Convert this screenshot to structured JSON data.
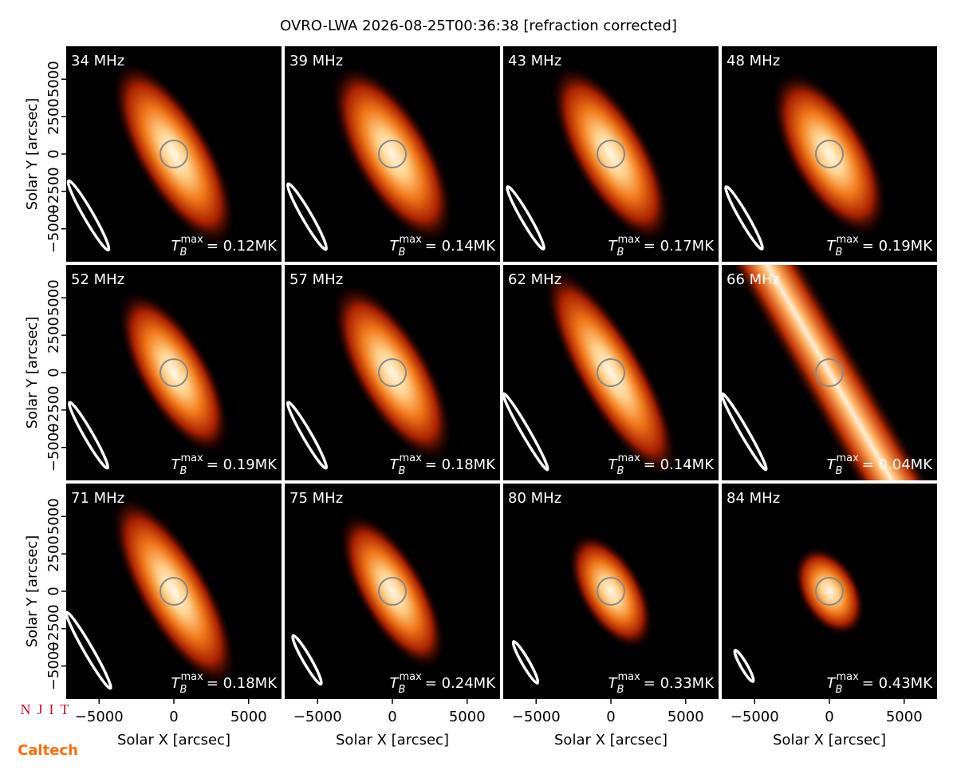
{
  "chart_data": {
    "type": "image-grid",
    "title": "OVRO-LWA 2026-08-25T00:36:38 [refraction corrected]",
    "xlabel": "Solar X [arcsec]",
    "ylabel": "Solar Y [arcsec]",
    "xlim": [
      -7200,
      7200
    ],
    "ylim": [
      -7200,
      7200
    ],
    "xticks": [
      {
        "value": -5000,
        "label": "−5000"
      },
      0,
      5000
    ],
    "yticks": [
      {
        "value": -5000,
        "label": "−5000"
      },
      {
        "value": -2500,
        "label": "−2500"
      },
      0,
      2500,
      5000
    ],
    "tb_symbol": {
      "base": "T",
      "sub": "B",
      "sup": "max"
    },
    "panels": [
      {
        "label": "34 MHz",
        "tbmax": "= 0.12MK"
      },
      {
        "label": "39 MHz",
        "tbmax": "= 0.14MK"
      },
      {
        "label": "43 MHz",
        "tbmax": "= 0.17MK"
      },
      {
        "label": "48 MHz",
        "tbmax": "= 0.19MK"
      },
      {
        "label": "52 MHz",
        "tbmax": "= 0.19MK"
      },
      {
        "label": "57 MHz",
        "tbmax": "= 0.18MK"
      },
      {
        "label": "62 MHz",
        "tbmax": "= 0.14MK"
      },
      {
        "label": "66 MHz",
        "tbmax": "= 0.04MK"
      },
      {
        "label": "71 MHz",
        "tbmax": "= 0.18MK"
      },
      {
        "label": "75 MHz",
        "tbmax": "= 0.24MK"
      },
      {
        "label": "80 MHz",
        "tbmax": "= 0.33MK"
      },
      {
        "label": "84 MHz",
        "tbmax": "= 0.43MK"
      }
    ]
  },
  "logos": [
    "NJIT",
    "Caltech"
  ]
}
